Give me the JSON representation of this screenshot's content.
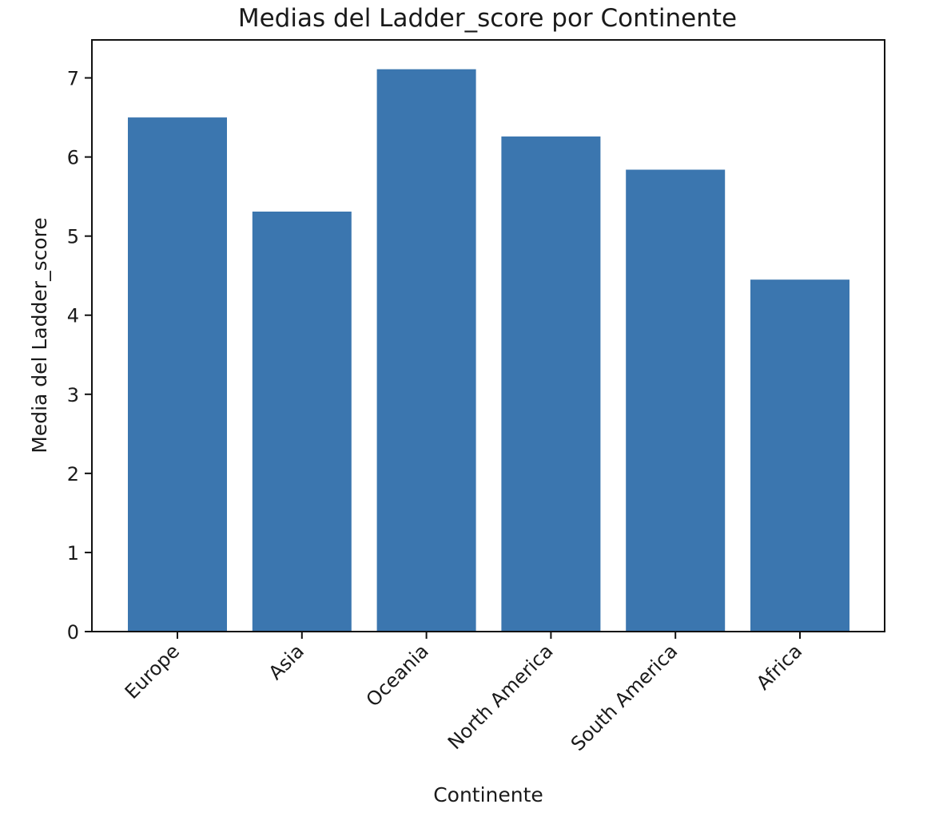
{
  "chart_data": {
    "type": "bar",
    "title": "Medias del Ladder_score por Continente",
    "xlabel": "Continente",
    "ylabel": "Media del Ladder_score",
    "categories": [
      "Europe",
      "Asia",
      "Oceania",
      "North America",
      "South America",
      "Africa"
    ],
    "values": [
      6.5,
      5.31,
      7.11,
      6.26,
      5.84,
      4.45
    ],
    "ylim": [
      0,
      7.48
    ],
    "yticks": [
      0,
      1,
      2,
      3,
      4,
      5,
      6,
      7
    ],
    "grid": false,
    "bar_color": "#3b76af",
    "xtick_rotation": 45
  }
}
